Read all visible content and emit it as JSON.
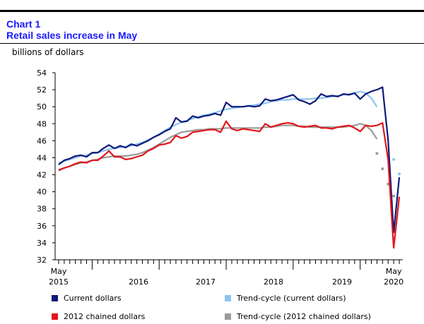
{
  "header": {
    "chart_number": "Chart 1",
    "title": "Retail sales increase in May"
  },
  "colors": {
    "current": "#0d1a7a",
    "trend_current": "#8fc4ee",
    "chained": "#e3141b",
    "trend_chained": "#9a9a9a"
  },
  "chart_data": {
    "type": "line",
    "title": "Retail sales increase in May",
    "ylabel": "billions of dollars",
    "ylim": [
      32,
      54
    ],
    "yticks": [
      32,
      34,
      36,
      38,
      40,
      42,
      44,
      46,
      48,
      50,
      52,
      54
    ],
    "x_start": "2015-05",
    "x_end": "2020-05",
    "xtick_labels": [
      {
        "month": "May",
        "year": "2015"
      },
      {
        "month": "",
        "year": "2016"
      },
      {
        "month": "",
        "year": "2017"
      },
      {
        "month": "",
        "year": "2018"
      },
      {
        "month": "",
        "year": "2019"
      },
      {
        "month": "May",
        "year": "2020"
      }
    ],
    "series": [
      {
        "name": "Current dollars",
        "values": [
          43.2,
          43.7,
          43.9,
          44.2,
          44.3,
          44.1,
          44.6,
          44.6,
          45.1,
          45.5,
          45.1,
          45.4,
          45.2,
          45.6,
          45.4,
          45.7,
          46.0,
          46.4,
          46.7,
          47.1,
          47.4,
          48.7,
          48.2,
          48.3,
          48.9,
          48.7,
          48.9,
          49.0,
          49.2,
          49.0,
          50.5,
          50.0,
          50.0,
          50.0,
          50.1,
          50.0,
          50.1,
          50.9,
          50.7,
          50.8,
          51.0,
          51.2,
          51.4,
          50.8,
          50.6,
          50.3,
          50.7,
          51.5,
          51.2,
          51.3,
          51.2,
          51.5,
          51.4,
          51.6,
          50.9,
          51.5,
          51.8,
          52.0,
          52.3,
          46.1,
          35.2,
          41.7
        ]
      },
      {
        "name": "Trend-cycle (current dollars)",
        "values": [
          43.4,
          43.6,
          43.8,
          44.0,
          44.2,
          44.3,
          44.5,
          44.6,
          44.8,
          45.0,
          45.1,
          45.2,
          45.3,
          45.4,
          45.6,
          45.8,
          46.1,
          46.4,
          46.8,
          47.2,
          47.6,
          47.9,
          48.2,
          48.4,
          48.6,
          48.8,
          49.0,
          49.1,
          49.3,
          49.5,
          49.7,
          49.8,
          49.9,
          50.0,
          50.1,
          50.2,
          50.3,
          50.4,
          50.6,
          50.7,
          50.8,
          50.8,
          50.9,
          50.9,
          50.9,
          50.9,
          51.0,
          51.0,
          51.1,
          51.2,
          51.3,
          51.4,
          51.5,
          51.6,
          51.8,
          51.6,
          51.0,
          50.0
        ],
        "projected": [
          null,
          null,
          null,
          null,
          null,
          null,
          null,
          null,
          null,
          null,
          null,
          null,
          null,
          null,
          null,
          null,
          null,
          null,
          null,
          null,
          null,
          null,
          null,
          null,
          null,
          null,
          null,
          null,
          null,
          null,
          null,
          null,
          null,
          null,
          null,
          null,
          null,
          null,
          null,
          null,
          null,
          null,
          null,
          null,
          null,
          null,
          null,
          null,
          null,
          null,
          null,
          null,
          null,
          null,
          null,
          null,
          null,
          null,
          null,
          null,
          43.8,
          42.1
        ]
      },
      {
        "name": "2012 chained dollars",
        "values": [
          42.5,
          42.8,
          43.0,
          43.3,
          43.5,
          43.4,
          43.7,
          43.7,
          44.2,
          44.8,
          44.1,
          44.1,
          43.8,
          43.9,
          44.1,
          44.3,
          44.8,
          45.1,
          45.5,
          45.6,
          45.8,
          46.6,
          46.3,
          46.5,
          47.0,
          47.1,
          47.2,
          47.3,
          47.3,
          47.0,
          48.3,
          47.4,
          47.2,
          47.4,
          47.3,
          47.2,
          47.1,
          48.0,
          47.6,
          47.8,
          48.0,
          48.1,
          48.0,
          47.7,
          47.6,
          47.7,
          47.8,
          47.5,
          47.5,
          47.4,
          47.6,
          47.7,
          47.8,
          47.5,
          47.1,
          47.8,
          47.7,
          47.8,
          48.1,
          43.8,
          33.4,
          39.4
        ]
      },
      {
        "name": "Trend-cycle (2012 chained dollars)",
        "values": [
          42.6,
          42.8,
          43.0,
          43.2,
          43.4,
          43.5,
          43.7,
          43.8,
          44.0,
          44.1,
          44.2,
          44.2,
          44.2,
          44.3,
          44.4,
          44.6,
          44.9,
          45.2,
          45.6,
          46.0,
          46.4,
          46.7,
          47.0,
          47.1,
          47.2,
          47.3,
          47.3,
          47.4,
          47.4,
          47.4,
          47.5,
          47.5,
          47.5,
          47.5,
          47.5,
          47.5,
          47.5,
          47.6,
          47.6,
          47.7,
          47.8,
          47.8,
          47.8,
          47.7,
          47.7,
          47.6,
          47.6,
          47.6,
          47.6,
          47.6,
          47.6,
          47.6,
          47.7,
          47.8,
          48.0,
          47.8,
          47.2,
          46.2
        ],
        "projected": [
          null,
          null,
          null,
          null,
          null,
          null,
          null,
          null,
          null,
          null,
          null,
          null,
          null,
          null,
          null,
          null,
          null,
          null,
          null,
          null,
          null,
          null,
          null,
          null,
          null,
          null,
          null,
          null,
          null,
          null,
          null,
          null,
          null,
          null,
          null,
          null,
          null,
          null,
          null,
          null,
          null,
          null,
          null,
          null,
          null,
          null,
          null,
          null,
          null,
          null,
          null,
          null,
          null,
          null,
          null,
          null,
          null,
          44.5,
          42.7,
          40.9,
          39.5
        ]
      }
    ],
    "grid": false,
    "legend": "bottom"
  }
}
